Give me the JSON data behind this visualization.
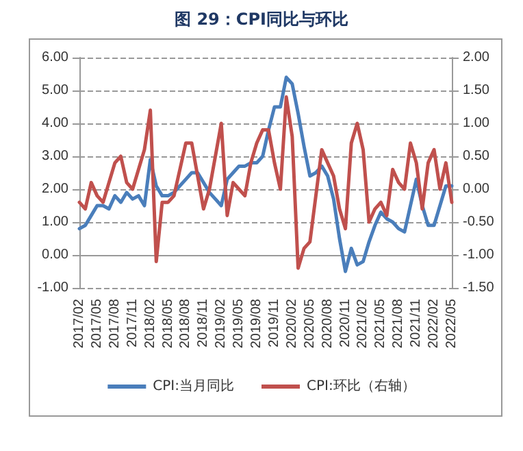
{
  "chart_data": {
    "type": "line",
    "title": "图 29：CPI同比与环比",
    "categories": [
      "2017/02",
      null,
      null,
      "2017/05",
      null,
      null,
      "2017/08",
      null,
      null,
      "2017/11",
      null,
      null,
      "2018/02",
      null,
      null,
      "2018/05",
      null,
      null,
      "2018/08",
      null,
      null,
      "2018/11",
      null,
      null,
      "2019/02",
      null,
      null,
      "2019/05",
      null,
      null,
      "2019/08",
      null,
      null,
      "2019/11",
      null,
      null,
      "2020/02",
      null,
      null,
      "2020/05",
      null,
      null,
      "2020/08",
      null,
      null,
      "2020/11",
      null,
      null,
      "2021/02",
      null,
      null,
      "2021/05",
      null,
      null,
      "2021/08",
      null,
      null,
      "2021/11",
      null,
      null,
      "2022/02",
      null,
      null,
      "2022/05"
    ],
    "series": [
      {
        "name": "CPI:当月同比",
        "color": "#4a7ebb",
        "values": [
          0.8,
          0.9,
          1.2,
          1.5,
          1.5,
          1.4,
          1.8,
          1.6,
          1.9,
          1.7,
          1.8,
          1.5,
          2.9,
          2.1,
          1.8,
          1.8,
          1.9,
          2.1,
          2.3,
          2.5,
          2.5,
          2.2,
          1.9,
          1.7,
          1.5,
          2.3,
          2.5,
          2.7,
          2.7,
          2.8,
          2.8,
          3.0,
          3.8,
          4.5,
          4.5,
          5.4,
          5.2,
          4.3,
          3.3,
          2.4,
          2.5,
          2.7,
          2.4,
          1.7,
          0.5,
          -0.5,
          0.2,
          -0.3,
          -0.2,
          0.4,
          0.9,
          1.3,
          1.1,
          1.0,
          0.8,
          0.7,
          1.5,
          2.3,
          1.5,
          0.9,
          0.9,
          1.5,
          2.1,
          2.1
        ]
      },
      {
        "name": "CPI:环比（右轴）",
        "color": "#c0504d",
        "axis": "y2",
        "values": [
          -0.2,
          -0.3,
          0.1,
          -0.1,
          -0.2,
          0.1,
          0.4,
          0.5,
          0.1,
          0.0,
          0.3,
          0.6,
          1.2,
          -1.1,
          -0.2,
          -0.2,
          -0.1,
          0.3,
          0.7,
          0.7,
          0.2,
          -0.3,
          0.0,
          0.5,
          1.0,
          -0.4,
          0.1,
          0.0,
          -0.1,
          0.4,
          0.7,
          0.9,
          0.9,
          0.4,
          0.0,
          1.4,
          0.8,
          -1.2,
          -0.9,
          -0.8,
          -0.1,
          0.6,
          0.4,
          0.2,
          -0.3,
          -0.6,
          0.7,
          1.0,
          0.6,
          -0.5,
          -0.3,
          -0.2,
          -0.4,
          0.3,
          0.1,
          0.0,
          0.7,
          0.4,
          -0.3,
          0.4,
          0.6,
          0.0,
          0.4,
          -0.2
        ]
      }
    ],
    "ylim": [
      -1,
      6
    ],
    "yticks": [
      {
        "value": -1,
        "label": "-1.00"
      },
      {
        "value": 0,
        "label": "0.00"
      },
      {
        "value": 1,
        "label": "1.00"
      },
      {
        "value": 2,
        "label": "2.00"
      },
      {
        "value": 3,
        "label": "3.00"
      },
      {
        "value": 4,
        "label": "4.00"
      },
      {
        "value": 5,
        "label": "5.00"
      },
      {
        "value": 6,
        "label": "6.00"
      }
    ],
    "y2lim": [
      -1.5,
      2
    ],
    "y2ticks": [
      {
        "value": -1.5,
        "label": "-1.50"
      },
      {
        "value": -1,
        "label": "-1.00"
      },
      {
        "value": -0.5,
        "label": "-0.50"
      },
      {
        "value": 0,
        "label": "0.00"
      },
      {
        "value": 0.5,
        "label": "0.50"
      },
      {
        "value": 1,
        "label": "1.00"
      },
      {
        "value": 1.5,
        "label": "1.50"
      },
      {
        "value": 2,
        "label": "2.00"
      }
    ],
    "grid": "y",
    "legend": "bottom",
    "marker": "none",
    "line_style": "solid"
  }
}
